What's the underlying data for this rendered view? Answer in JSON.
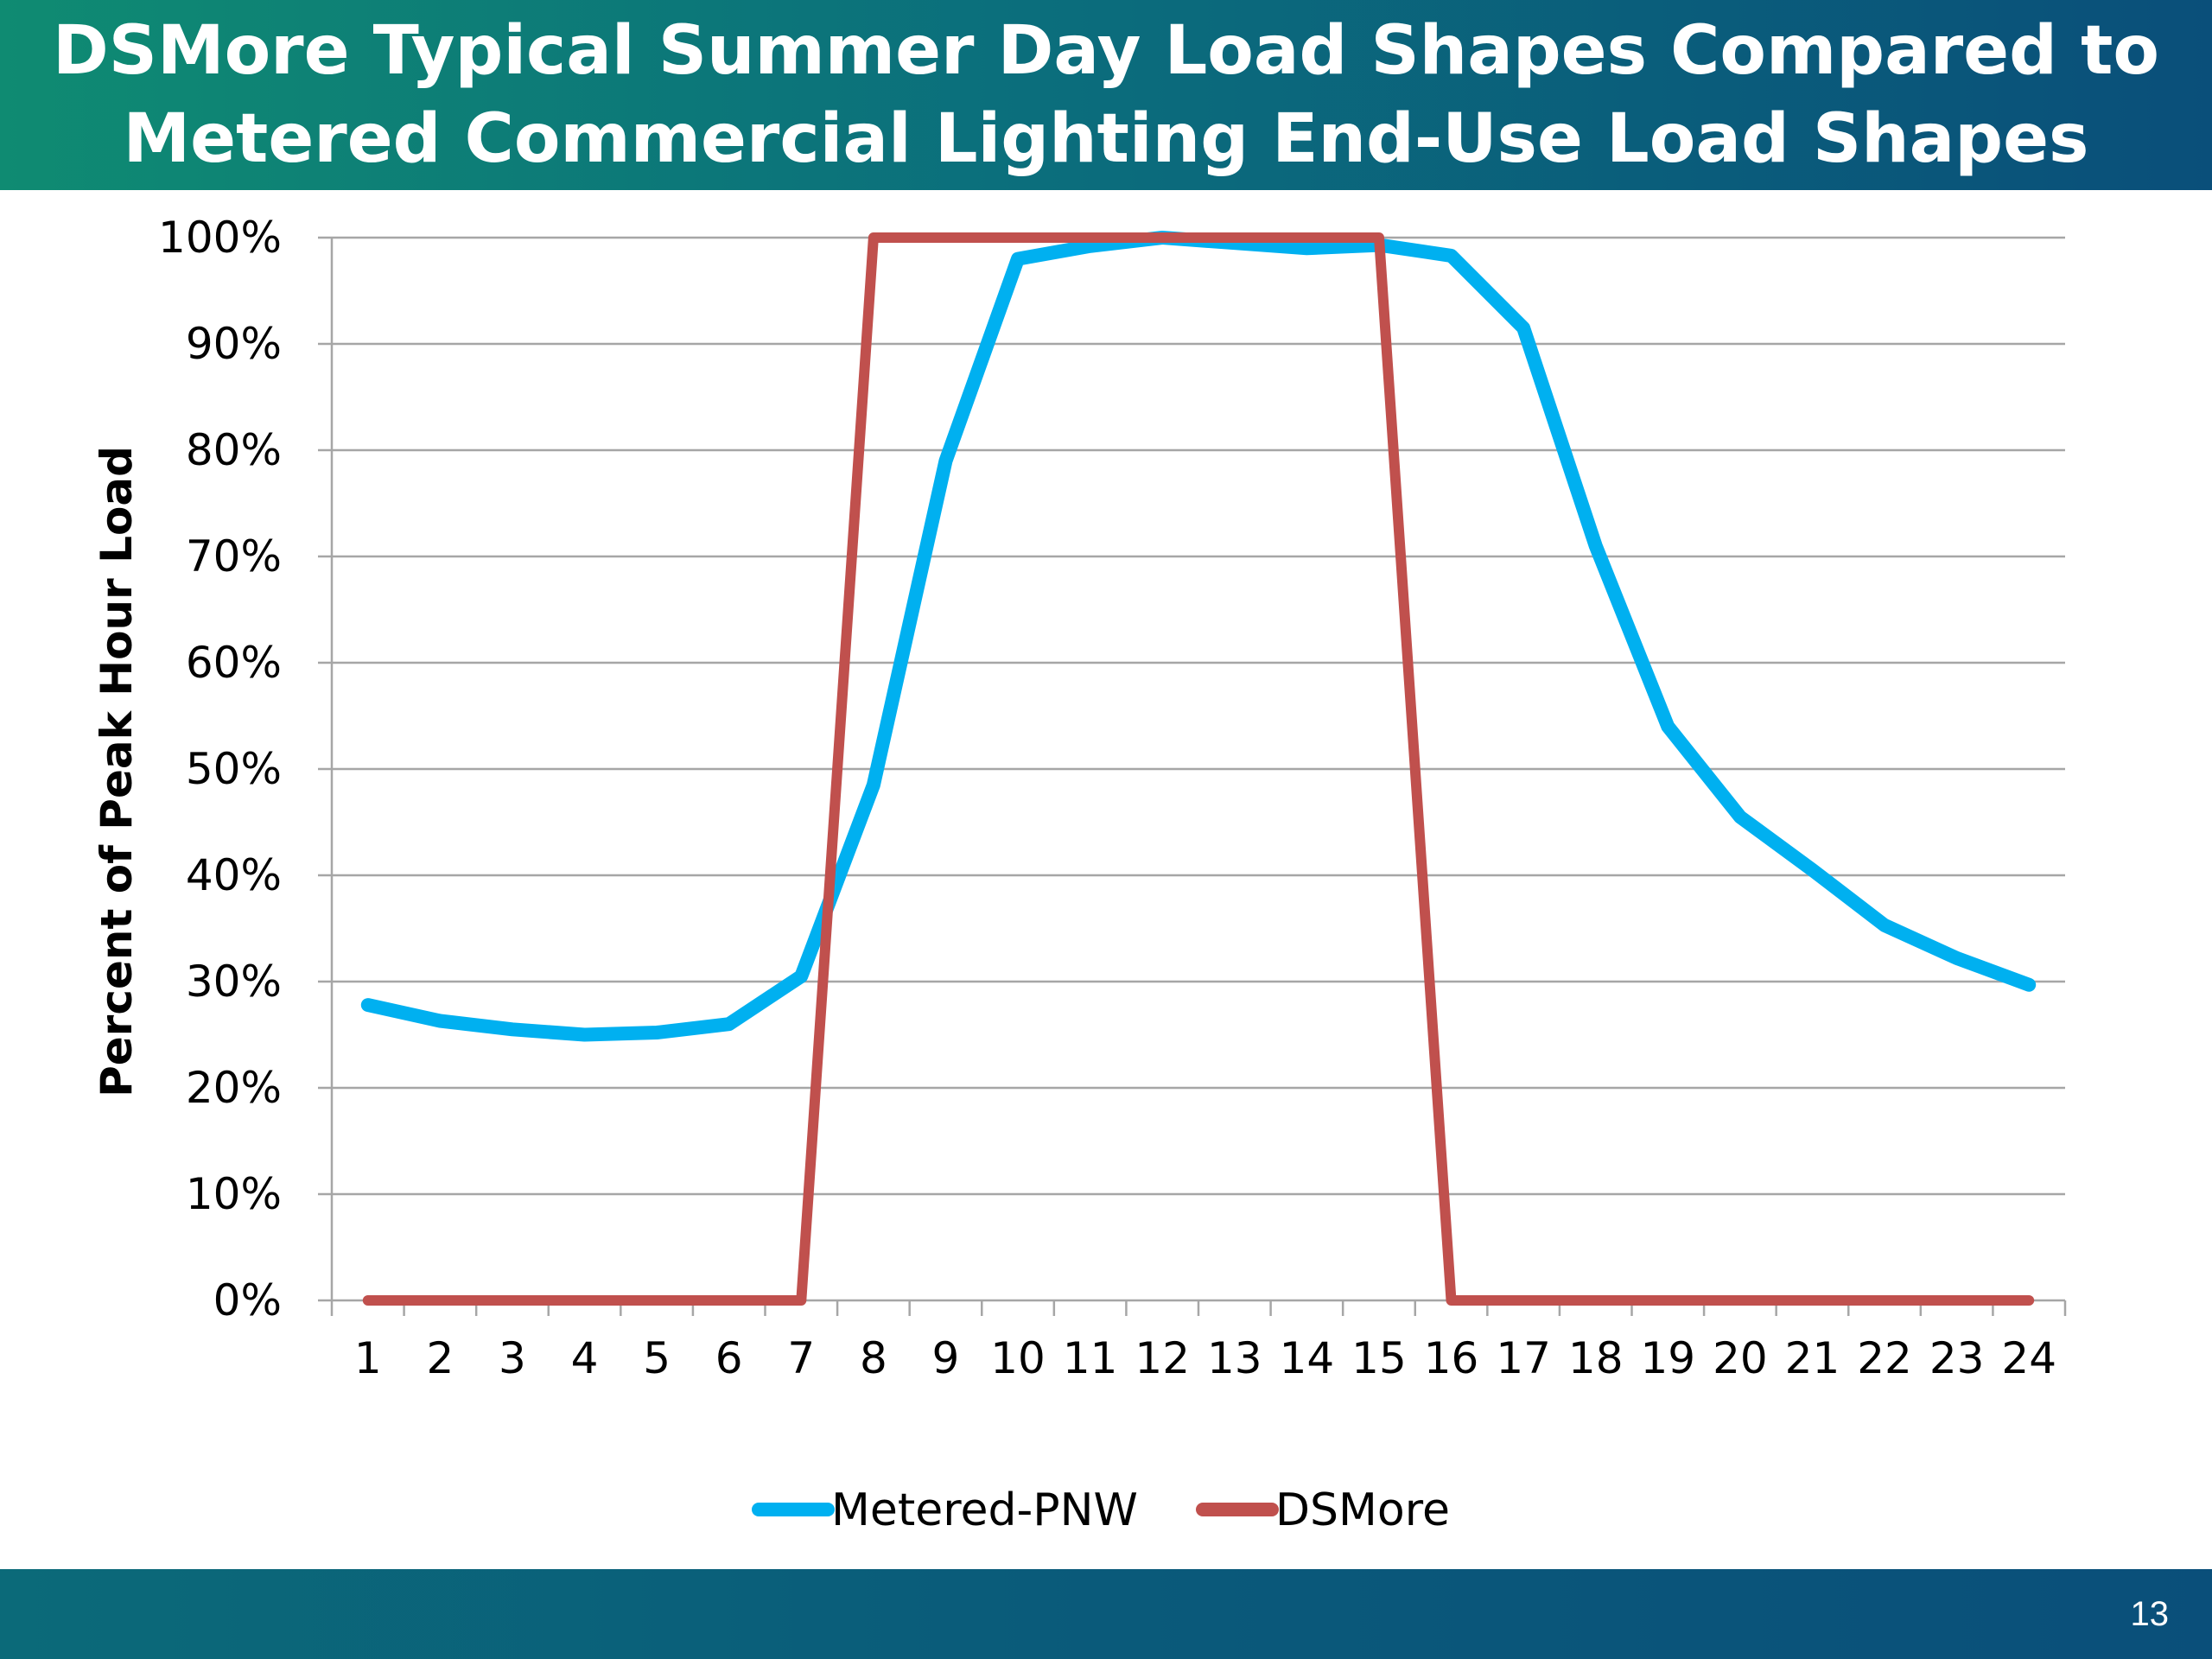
{
  "slide": {
    "title_line1": "DSMore Typical Summer Day Load Shapes Compared to",
    "title_line2": "Metered Commercial Lighting End-Use Load Shapes",
    "page_number": "13"
  },
  "colors": {
    "metered": "#00b0f0",
    "dsmore": "#c0504d",
    "grid": "#a6a6a6"
  },
  "chart_data": {
    "type": "line",
    "title": "",
    "xlabel": "",
    "ylabel": "Percent of Peak Hour Load",
    "x": [
      "1",
      "2",
      "3",
      "4",
      "5",
      "6",
      "7",
      "8",
      "9",
      "10",
      "11",
      "12",
      "13",
      "14",
      "15",
      "16",
      "17",
      "18",
      "19",
      "20",
      "21",
      "22",
      "23",
      "24"
    ],
    "ylim": [
      0,
      100
    ],
    "yticks": [
      "0%",
      "10%",
      "20%",
      "30%",
      "40%",
      "50%",
      "60%",
      "70%",
      "80%",
      "90%",
      "100%"
    ],
    "grid": true,
    "legend_position": "bottom",
    "series": [
      {
        "name": "Metered-PNW",
        "color": "#00b0f0",
        "values": [
          27.8,
          26.3,
          25.5,
          25.0,
          25.2,
          26.0,
          30.5,
          48.5,
          79.0,
          98.0,
          99.2,
          100.0,
          99.5,
          99.0,
          99.3,
          98.3,
          91.5,
          71.0,
          54.0,
          45.5,
          40.5,
          35.3,
          32.2,
          29.7
        ]
      },
      {
        "name": "DSMore",
        "color": "#c0504d",
        "values": [
          0,
          0,
          0,
          0,
          0,
          0,
          0,
          100,
          100,
          100,
          100,
          100,
          100,
          100,
          100,
          0,
          0,
          0,
          0,
          0,
          0,
          0,
          0,
          0
        ]
      }
    ]
  }
}
